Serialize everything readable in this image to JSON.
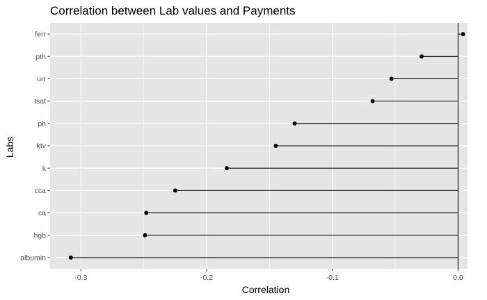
{
  "chart_data": {
    "type": "lollipop",
    "title": "Correlation between Lab values and Payments",
    "xlabel": "Correlation",
    "ylabel": "Labs",
    "xlim": [
      -0.3245,
      0.0075
    ],
    "x_ticks": [
      -0.3,
      -0.2,
      -0.1,
      0.0
    ],
    "x_tick_labels": [
      "-0.3",
      "-0.2",
      "-0.1",
      "0.0"
    ],
    "reference_line_x": 0,
    "grid": true,
    "panel_background": "#e5e5e5",
    "grid_color": "#ffffff",
    "point_color": "#000000",
    "categories": [
      "ferr",
      "pth",
      "urr",
      "tsat",
      "ph",
      "ktv",
      "k",
      "cca",
      "ca",
      "hgb",
      "albumin"
    ],
    "values": [
      0.004,
      -0.029,
      -0.053,
      -0.068,
      -0.13,
      -0.145,
      -0.184,
      -0.225,
      -0.248,
      -0.249,
      -0.308
    ]
  }
}
